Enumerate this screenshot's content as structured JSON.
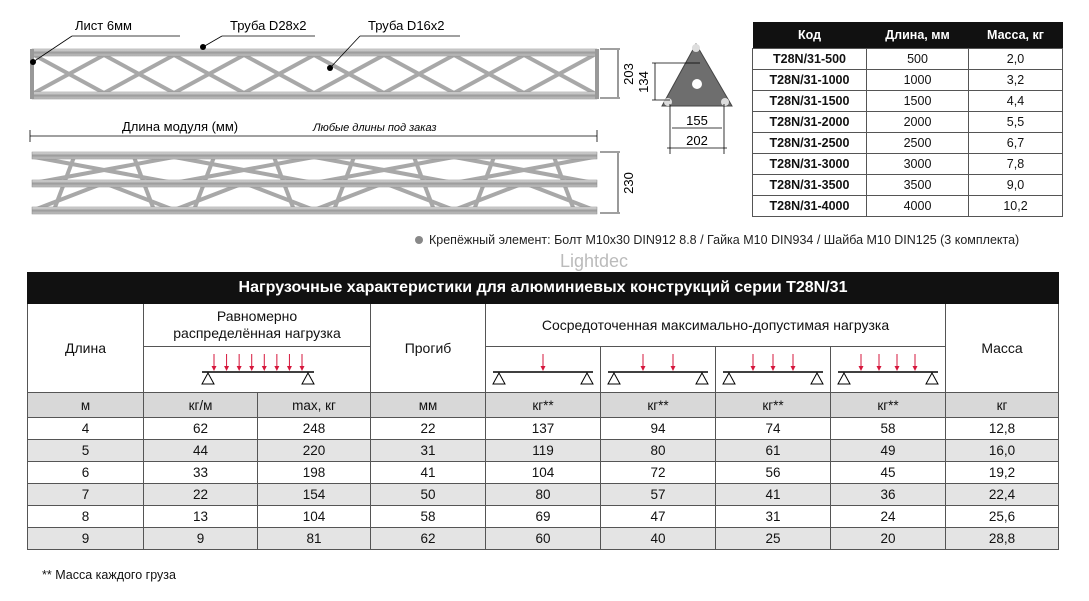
{
  "drawing": {
    "label_sheet": "Лист 6мм",
    "label_tube_main": "Труба D28x2",
    "label_tube_brace": "Труба D16x2",
    "dim_height_top": "203",
    "dim_height_bottom": "230",
    "module_length_label": "Длина модуля (мм)",
    "any_length_label": "Любые длины под заказ",
    "plate_dim_height": "134",
    "plate_dim_inner": "155",
    "plate_dim_outer": "202"
  },
  "spec_table": {
    "headers": [
      "Код",
      "Длина, мм",
      "Масса, кг"
    ],
    "rows": [
      [
        "T28N/31-500",
        "500",
        "2,0"
      ],
      [
        "T28N/31-1000",
        "1000",
        "3,2"
      ],
      [
        "T28N/31-1500",
        "1500",
        "4,4"
      ],
      [
        "T28N/31-2000",
        "2000",
        "5,5"
      ],
      [
        "T28N/31-2500",
        "2500",
        "6,7"
      ],
      [
        "T28N/31-3000",
        "3000",
        "7,8"
      ],
      [
        "T28N/31-3500",
        "3500",
        "9,0"
      ],
      [
        "T28N/31-4000",
        "4000",
        "10,2"
      ]
    ]
  },
  "fastener_note": "Крепёжный элемент: Болт M10x30 DIN912 8.8 / Гайка M10 DIN934 / Шайба M10 DIN125 (3 комплекта)",
  "load_table": {
    "title": "Нагрузочные характеристики для алюминиевых конструкций серии T28N/31",
    "watermark": "Lightdec",
    "col_length": "Длина",
    "col_uniform": "Равномерно распределённая нагрузка",
    "col_deflection": "Прогиб",
    "col_point": "Сосредоточенная максимально-допустимая нагрузка",
    "col_mass": "Масса",
    "uniform_arrows": 8,
    "point_arrows": [
      1,
      2,
      3,
      4
    ],
    "arrow_color": "#d6173c",
    "units": [
      "м",
      "кг/м",
      "max, кг",
      "мм",
      "кг**",
      "кг**",
      "кг**",
      "кг**",
      "кг"
    ],
    "rows": [
      [
        "4",
        "62",
        "248",
        "22",
        "137",
        "94",
        "74",
        "58",
        "12,8"
      ],
      [
        "5",
        "44",
        "220",
        "31",
        "119",
        "80",
        "61",
        "49",
        "16,0"
      ],
      [
        "6",
        "33",
        "198",
        "41",
        "104",
        "72",
        "56",
        "45",
        "19,2"
      ],
      [
        "7",
        "22",
        "154",
        "50",
        "80",
        "57",
        "41",
        "36",
        "22,4"
      ],
      [
        "8",
        "13",
        "104",
        "58",
        "69",
        "47",
        "31",
        "24",
        "25,6"
      ],
      [
        "9",
        "9",
        "81",
        "62",
        "60",
        "40",
        "25",
        "20",
        "28,8"
      ]
    ]
  },
  "footnote": "** Масса каждого груза"
}
